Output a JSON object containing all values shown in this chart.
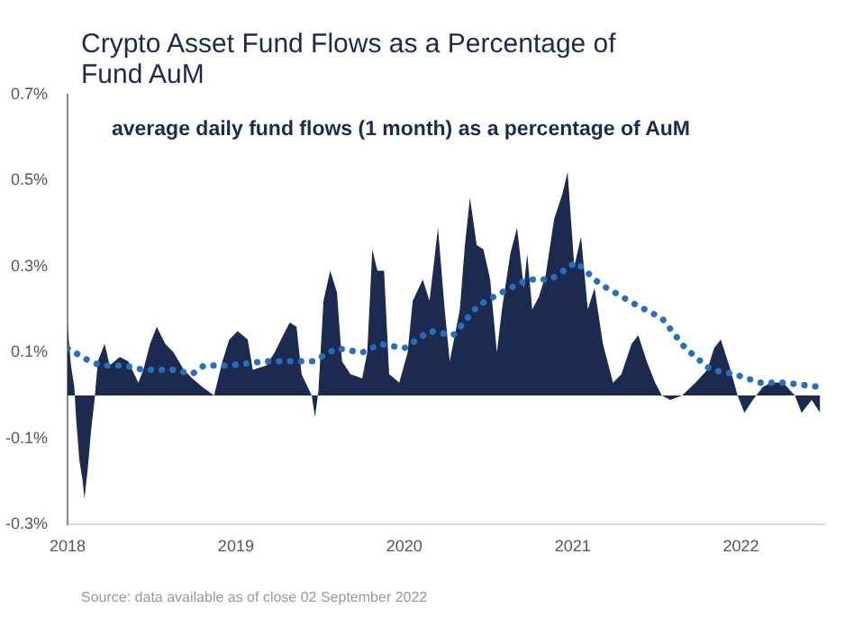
{
  "chart_data": {
    "type": "area",
    "title": "Crypto Asset Fund Flows as a Percentage of Fund AuM",
    "subtitle": "average daily fund flows (1 month) as a percentage of AuM",
    "annotations": [
      "Source: data available as of close 02 September 2022"
    ],
    "xlim": [
      2018,
      2022.5
    ],
    "xticks": [
      2018,
      2019,
      2020,
      2021,
      2022
    ],
    "ylim": [
      -0.3,
      0.7
    ],
    "yticks": [
      {
        "value": -0.3,
        "label": "-0.3%"
      },
      {
        "value": -0.1,
        "label": "-0.1%"
      },
      {
        "value": 0.1,
        "label": "0.1%"
      },
      {
        "value": 0.3,
        "label": "0.3%"
      },
      {
        "value": 0.5,
        "label": "0.5%"
      },
      {
        "value": 0.7,
        "label": "0.7%"
      }
    ],
    "grid": false,
    "legend": false,
    "series": [
      {
        "type": "area",
        "color": "#1b2a4e",
        "x": [
          2018.0,
          2018.02,
          2018.04,
          2018.05,
          2018.07,
          2018.09,
          2018.1,
          2018.12,
          2018.14,
          2018.16,
          2018.18,
          2018.22,
          2018.25,
          2018.31,
          2018.36,
          2018.42,
          2018.45,
          2018.49,
          2018.53,
          2018.58,
          2018.63,
          2018.69,
          2018.74,
          2018.8,
          2018.87,
          2018.92,
          2018.96,
          2019.01,
          2019.07,
          2019.1,
          2019.18,
          2019.23,
          2019.28,
          2019.32,
          2019.36,
          2019.39,
          2019.45,
          2019.47,
          2019.49,
          2019.52,
          2019.56,
          2019.6,
          2019.63,
          2019.68,
          2019.75,
          2019.78,
          2019.81,
          2019.84,
          2019.88,
          2019.91,
          2019.97,
          2020.02,
          2020.05,
          2020.11,
          2020.15,
          2020.2,
          2020.24,
          2020.27,
          2020.33,
          2020.36,
          2020.39,
          2020.43,
          2020.47,
          2020.51,
          2020.55,
          2020.58,
          2020.63,
          2020.67,
          2020.71,
          2020.73,
          2020.76,
          2020.8,
          2020.84,
          2020.89,
          2020.94,
          2020.97,
          2021.01,
          2021.05,
          2021.09,
          2021.13,
          2021.18,
          2021.24,
          2021.29,
          2021.35,
          2021.39,
          2021.44,
          2021.49,
          2021.53,
          2021.58,
          2021.65,
          2021.73,
          2021.8,
          2021.84,
          2021.88,
          2021.93,
          2021.98,
          2022.02,
          2022.07,
          2022.13,
          2022.18,
          2022.25,
          2022.32,
          2022.36,
          2022.42,
          2022.47
        ],
        "values": [
          0.16,
          0.07,
          0.02,
          -0.05,
          -0.15,
          -0.2,
          -0.24,
          -0.17,
          -0.08,
          -0.01,
          0.08,
          0.12,
          0.07,
          0.09,
          0.08,
          0.03,
          0.06,
          0.12,
          0.16,
          0.12,
          0.1,
          0.06,
          0.04,
          0.02,
          0.0,
          0.08,
          0.13,
          0.15,
          0.13,
          0.06,
          0.07,
          0.1,
          0.14,
          0.17,
          0.16,
          0.05,
          0.0,
          -0.05,
          0.01,
          0.22,
          0.29,
          0.24,
          0.08,
          0.05,
          0.04,
          0.1,
          0.34,
          0.29,
          0.29,
          0.05,
          0.03,
          0.1,
          0.22,
          0.27,
          0.22,
          0.39,
          0.2,
          0.08,
          0.2,
          0.35,
          0.46,
          0.35,
          0.34,
          0.27,
          0.1,
          0.2,
          0.33,
          0.39,
          0.25,
          0.33,
          0.2,
          0.23,
          0.28,
          0.41,
          0.47,
          0.52,
          0.3,
          0.37,
          0.2,
          0.25,
          0.12,
          0.03,
          0.05,
          0.12,
          0.14,
          0.08,
          0.03,
          0.0,
          -0.01,
          0.0,
          0.03,
          0.06,
          0.11,
          0.13,
          0.07,
          0.0,
          -0.04,
          -0.01,
          0.02,
          0.03,
          0.03,
          0.0,
          -0.04,
          -0.01,
          -0.04
        ]
      },
      {
        "type": "line",
        "color": "#2a6ebb",
        "line_style": "dotted",
        "marker": "none",
        "x": [
          2018.0,
          2018.13,
          2018.2,
          2018.34,
          2018.45,
          2018.63,
          2018.74,
          2018.81,
          2018.96,
          2019.18,
          2019.46,
          2019.6,
          2019.75,
          2019.86,
          2020.0,
          2020.15,
          2020.29,
          2020.44,
          2020.58,
          2020.73,
          2020.87,
          2021.02,
          2021.16,
          2021.38,
          2021.53,
          2021.67,
          2021.82,
          2021.96,
          2022.11,
          2022.25,
          2022.47
        ],
        "values": [
          0.11,
          0.08,
          0.07,
          0.07,
          0.06,
          0.06,
          0.05,
          0.07,
          0.07,
          0.08,
          0.08,
          0.11,
          0.1,
          0.12,
          0.11,
          0.15,
          0.14,
          0.21,
          0.24,
          0.27,
          0.27,
          0.31,
          0.26,
          0.21,
          0.18,
          0.11,
          0.06,
          0.05,
          0.03,
          0.03,
          0.02
        ]
      }
    ]
  }
}
